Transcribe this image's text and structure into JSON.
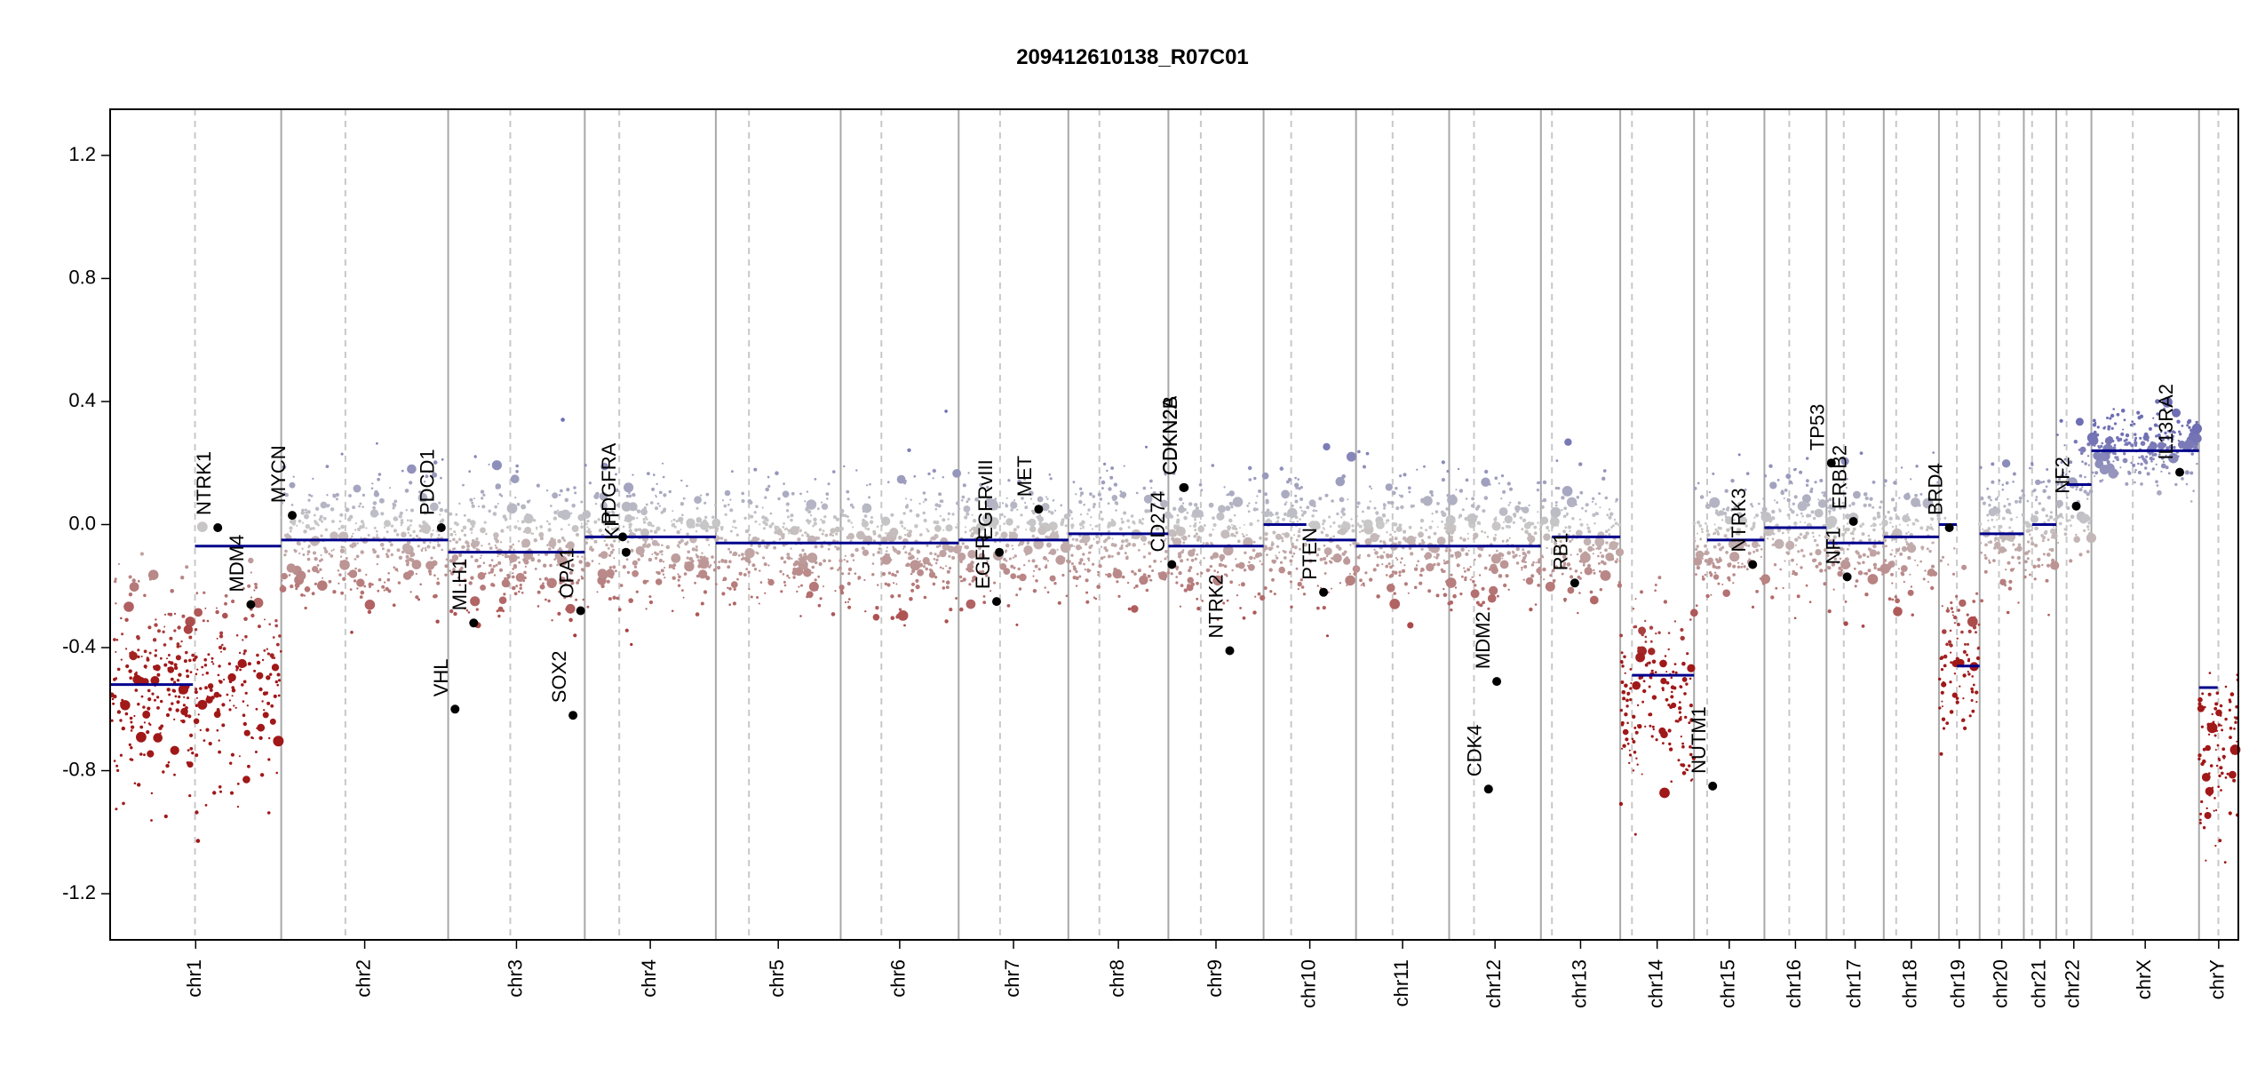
{
  "colors": {
    "gain": "#6e6eb4",
    "neutral": "#c8c8c8",
    "loss": "#a01818",
    "segment": "#00008b",
    "gene_point": "#000000",
    "boundary_solid": "#a8a8a8",
    "boundary_dashed": "#c8c8c8"
  },
  "chart_data": {
    "type": "scatter",
    "title": "209412610138_R07C01",
    "xlabel": "",
    "ylabel": "",
    "ylim": [
      -1.35,
      1.35
    ],
    "y_ticks": [
      {
        "value": 1.2,
        "label": "1.2"
      },
      {
        "value": 0.8,
        "label": "0.8"
      },
      {
        "value": 0.4,
        "label": "0.4"
      },
      {
        "value": 0.0,
        "label": "0.0"
      },
      {
        "value": -0.4,
        "label": "-0.4"
      },
      {
        "value": -0.8,
        "label": "-0.8"
      },
      {
        "value": -1.2,
        "label": "-1.2"
      }
    ],
    "grid": false,
    "chromosomes": [
      {
        "name": "chr1",
        "start": 0,
        "end": 248,
        "centromere": 123,
        "segments": [
          {
            "from": 0,
            "to": 120,
            "y": -0.52
          },
          {
            "from": 123,
            "to": 248,
            "y": -0.07
          }
        ],
        "cluster": {
          "center": -0.5,
          "spread": 0.35
        }
      },
      {
        "name": "chr2",
        "start": 248,
        "end": 490,
        "centromere": 341,
        "segments": [
          {
            "from": 248,
            "to": 490,
            "y": -0.05
          }
        ],
        "cluster": {
          "center": -0.05,
          "spread": 0.2
        }
      },
      {
        "name": "chr3",
        "start": 490,
        "end": 688,
        "centromere": 580,
        "segments": [
          {
            "from": 490,
            "to": 688,
            "y": -0.09
          }
        ],
        "cluster": {
          "center": -0.08,
          "spread": 0.22
        }
      },
      {
        "name": "chr4",
        "start": 688,
        "end": 878,
        "centromere": 738,
        "segments": [
          {
            "from": 688,
            "to": 878,
            "y": -0.04
          }
        ],
        "cluster": {
          "center": -0.05,
          "spread": 0.2
        }
      },
      {
        "name": "chr5",
        "start": 878,
        "end": 1059,
        "centromere": 926,
        "segments": [
          {
            "from": 878,
            "to": 1059,
            "y": -0.06
          }
        ],
        "cluster": {
          "center": -0.06,
          "spread": 0.2
        }
      },
      {
        "name": "chr6",
        "start": 1059,
        "end": 1230,
        "centromere": 1118,
        "segments": [
          {
            "from": 1059,
            "to": 1230,
            "y": -0.06
          }
        ],
        "cluster": {
          "center": -0.06,
          "spread": 0.2
        }
      },
      {
        "name": "chr7",
        "start": 1230,
        "end": 1389,
        "centromere": 1290,
        "segments": [
          {
            "from": 1230,
            "to": 1389,
            "y": -0.05
          }
        ],
        "cluster": {
          "center": -0.05,
          "spread": 0.2
        }
      },
      {
        "name": "chr8",
        "start": 1389,
        "end": 1534,
        "centromere": 1434,
        "segments": [
          {
            "from": 1389,
            "to": 1534,
            "y": -0.03
          }
        ],
        "cluster": {
          "center": -0.04,
          "spread": 0.2
        }
      },
      {
        "name": "chr9",
        "start": 1534,
        "end": 1672,
        "centromere": 1581,
        "segments": [
          {
            "from": 1534,
            "to": 1672,
            "y": -0.07
          }
        ],
        "cluster": {
          "center": -0.07,
          "spread": 0.2
        }
      },
      {
        "name": "chr10",
        "start": 1672,
        "end": 1806,
        "centromere": 1712,
        "segments": [
          {
            "from": 1672,
            "to": 1734,
            "y": 0.0
          },
          {
            "from": 1734,
            "to": 1806,
            "y": -0.05
          }
        ],
        "cluster": {
          "center": -0.03,
          "spread": 0.2
        }
      },
      {
        "name": "chr11",
        "start": 1806,
        "end": 1941,
        "centromere": 1859,
        "segments": [
          {
            "from": 1806,
            "to": 1941,
            "y": -0.07
          }
        ],
        "cluster": {
          "center": -0.06,
          "spread": 0.2
        }
      },
      {
        "name": "chr12",
        "start": 1941,
        "end": 2074,
        "centromere": 1977,
        "segments": [
          {
            "from": 1941,
            "to": 2074,
            "y": -0.07
          }
        ],
        "cluster": {
          "center": -0.06,
          "spread": 0.2
        }
      },
      {
        "name": "chr13",
        "start": 2074,
        "end": 2189,
        "centromere": 2090,
        "segments": [
          {
            "from": 2090,
            "to": 2189,
            "y": -0.04
          }
        ],
        "cluster": {
          "center": -0.05,
          "spread": 0.2
        }
      },
      {
        "name": "chr14",
        "start": 2189,
        "end": 2296,
        "centromere": 2206,
        "segments": [
          {
            "from": 2206,
            "to": 2296,
            "y": -0.49
          }
        ],
        "cluster": {
          "center": -0.55,
          "spread": 0.32
        }
      },
      {
        "name": "chr15",
        "start": 2296,
        "end": 2398,
        "centromere": 2315,
        "segments": [
          {
            "from": 2315,
            "to": 2398,
            "y": -0.05
          }
        ],
        "cluster": {
          "center": -0.06,
          "spread": 0.2
        }
      },
      {
        "name": "chr16",
        "start": 2398,
        "end": 2488,
        "centromere": 2434,
        "segments": [
          {
            "from": 2398,
            "to": 2488,
            "y": -0.01
          }
        ],
        "cluster": {
          "center": -0.02,
          "spread": 0.2
        }
      },
      {
        "name": "chr17",
        "start": 2488,
        "end": 2571,
        "centromere": 2513,
        "segments": [
          {
            "from": 2488,
            "to": 2571,
            "y": -0.06
          }
        ],
        "cluster": {
          "center": -0.05,
          "spread": 0.2
        }
      },
      {
        "name": "chr18",
        "start": 2571,
        "end": 2651,
        "centromere": 2589,
        "segments": [
          {
            "from": 2571,
            "to": 2651,
            "y": -0.04
          }
        ],
        "cluster": {
          "center": -0.04,
          "spread": 0.2
        }
      },
      {
        "name": "chr19",
        "start": 2651,
        "end": 2710,
        "centromere": 2677,
        "segments": [
          {
            "from": 2651,
            "to": 2677,
            "y": 0.0
          },
          {
            "from": 2677,
            "to": 2710,
            "y": -0.46
          }
        ],
        "cluster": {
          "center": -0.4,
          "spread": 0.3
        }
      },
      {
        "name": "chr20",
        "start": 2710,
        "end": 2774,
        "centromere": 2738,
        "segments": [
          {
            "from": 2710,
            "to": 2774,
            "y": -0.03
          }
        ],
        "cluster": {
          "center": -0.03,
          "spread": 0.2
        }
      },
      {
        "name": "chr21",
        "start": 2774,
        "end": 2821,
        "centromere": 2786,
        "segments": [
          {
            "from": 2786,
            "to": 2821,
            "y": 0.0
          }
        ],
        "cluster": {
          "center": 0.0,
          "spread": 0.2
        }
      },
      {
        "name": "chr22",
        "start": 2821,
        "end": 2872,
        "centromere": 2836,
        "segments": [
          {
            "from": 2836,
            "to": 2872,
            "y": 0.13
          }
        ],
        "cluster": {
          "center": 0.12,
          "spread": 0.18
        }
      },
      {
        "name": "chrX",
        "start": 2872,
        "end": 3028,
        "centromere": 2932,
        "segments": [
          {
            "from": 2872,
            "to": 3028,
            "y": 0.24
          }
        ],
        "cluster": {
          "center": 0.25,
          "spread": 0.12
        }
      },
      {
        "name": "chrY",
        "start": 3028,
        "end": 3085,
        "centromere": 3056,
        "segments": [
          {
            "from": 3028,
            "to": 3055,
            "y": -0.53
          }
        ],
        "cluster": {
          "center": -0.7,
          "spread": 0.3
        }
      }
    ],
    "genes": [
      {
        "name": "NTRK1",
        "x": 156,
        "y": -0.01
      },
      {
        "name": "MDM4",
        "x": 204,
        "y": -0.26
      },
      {
        "name": "MYCN",
        "x": 264,
        "y": 0.03
      },
      {
        "name": "PDCD1",
        "x": 480,
        "y": -0.01
      },
      {
        "name": "VHL",
        "x": 500,
        "y": -0.6
      },
      {
        "name": "MLH1",
        "x": 527,
        "y": -0.32
      },
      {
        "name": "SOX2",
        "x": 671,
        "y": -0.62
      },
      {
        "name": "OPA1",
        "x": 682,
        "y": -0.28
      },
      {
        "name": "PDGFRA",
        "x": 743,
        "y": -0.04
      },
      {
        "name": "KIT",
        "x": 748,
        "y": -0.09
      },
      {
        "name": "EGFR",
        "x": 1285,
        "y": -0.25
      },
      {
        "name": "EGFRvIII",
        "x": 1289,
        "y": -0.09
      },
      {
        "name": "MET",
        "x": 1346,
        "y": 0.05
      },
      {
        "name": "CD274",
        "x": 1539,
        "y": -0.13
      },
      {
        "name": "CDKN2A",
        "x": 1556,
        "y": 0.12
      },
      {
        "name": "CDKN2B",
        "x": 1557,
        "y": 0.12
      },
      {
        "name": "NTRK2",
        "x": 1623,
        "y": -0.41
      },
      {
        "name": "PTEN",
        "x": 1759,
        "y": -0.22
      },
      {
        "name": "CDK4",
        "x": 1998,
        "y": -0.86
      },
      {
        "name": "MDM2",
        "x": 2010,
        "y": -0.51
      },
      {
        "name": "RB1",
        "x": 2123,
        "y": -0.19
      },
      {
        "name": "NUTM1",
        "x": 2323,
        "y": -0.85
      },
      {
        "name": "NTRK3",
        "x": 2381,
        "y": -0.13
      },
      {
        "name": "TP53",
        "x": 2495,
        "y": 0.2
      },
      {
        "name": "NF1",
        "x": 2518,
        "y": -0.17
      },
      {
        "name": "ERBB2",
        "x": 2527,
        "y": 0.01
      },
      {
        "name": "BRD4",
        "x": 2666,
        "y": -0.01
      },
      {
        "name": "NF2",
        "x": 2850,
        "y": 0.06
      },
      {
        "name": "IL13RA2",
        "x": 3000,
        "y": 0.17
      }
    ]
  }
}
